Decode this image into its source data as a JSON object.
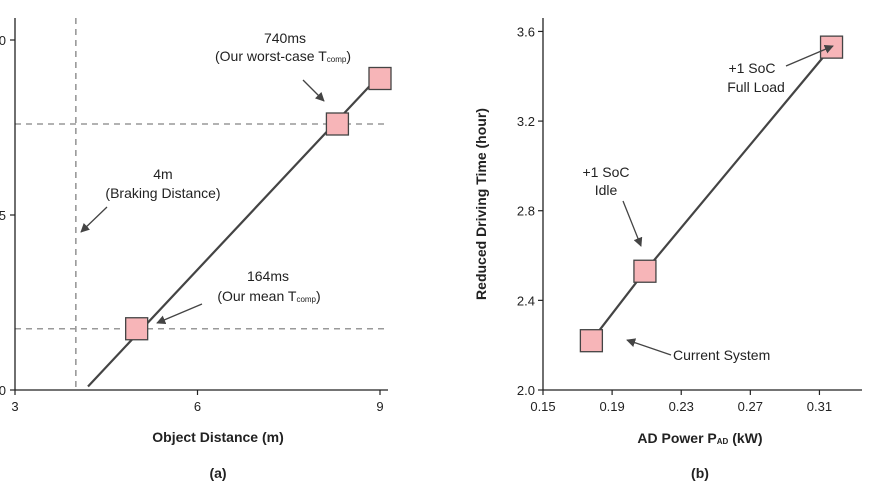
{
  "chart_data": [
    {
      "type": "line",
      "panel_label": "(a)",
      "xlabel": "Object Distance (m)",
      "ylabel": "",
      "xlim": [
        3,
        9
      ],
      "ylim": [
        0,
        10
      ],
      "x_ticks": [
        "3",
        "6",
        "9"
      ],
      "y_ticks": [
        "0",
        "5",
        "0"
      ],
      "series": [
        {
          "x": [
            4.2,
            9.0
          ],
          "y": [
            0.1,
            9.0
          ]
        }
      ],
      "markers": [
        {
          "x": 5.0,
          "y": 1.75
        },
        {
          "x": 8.3,
          "y": 7.6
        },
        {
          "x": 9.0,
          "y": 8.9
        }
      ],
      "reference_lines": {
        "vertical_x": 4,
        "horizontal_y": [
          1.75,
          7.6
        ]
      },
      "annotations": [
        {
          "line1": "740ms",
          "line2_prefix": "(Our worst-case T",
          "line2_sub": "comp",
          "line2_suffix": ")"
        },
        {
          "line1": "4m",
          "line2": "(Braking Distance)"
        },
        {
          "line1": "164ms",
          "line2_prefix": "(Our mean T",
          "line2_sub": "comp",
          "line2_suffix": ")"
        }
      ]
    },
    {
      "type": "line",
      "panel_label": "(b)",
      "xlabel_prefix": "AD Power P",
      "xlabel_sub": "AD",
      "xlabel_suffix": " (kW)",
      "ylabel": "Reduced Driving Time (hour)",
      "xlim": [
        0.15,
        0.33
      ],
      "ylim": [
        2.0,
        3.66
      ],
      "x_ticks": [
        "0.15",
        "0.19",
        "0.23",
        "0.27",
        "0.31"
      ],
      "y_ticks": [
        "2.0",
        "2.4",
        "2.8",
        "3.2",
        "3.6"
      ],
      "series": [
        {
          "x": [
            0.178,
            0.209,
            0.317
          ],
          "y": [
            2.22,
            2.53,
            3.53
          ]
        }
      ],
      "annotations": [
        {
          "line1": "+1 SoC",
          "line2": "Full Load"
        },
        {
          "line1": "+1 SoC",
          "line2": "Idle"
        },
        {
          "line1": "Current System"
        }
      ]
    }
  ]
}
